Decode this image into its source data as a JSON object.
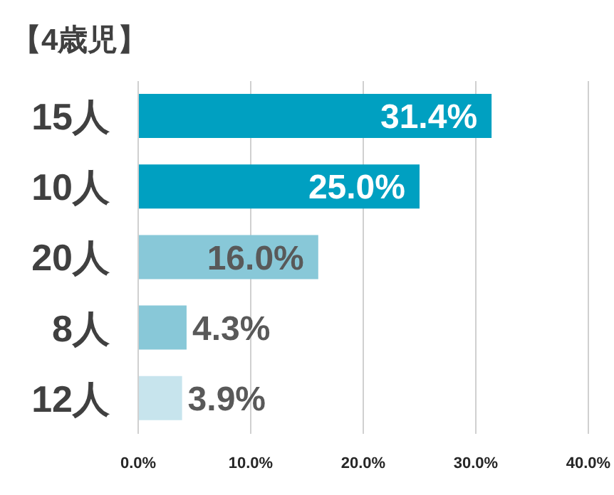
{
  "chart_data": {
    "type": "bar",
    "orientation": "horizontal",
    "title": "【4歳児】",
    "categories": [
      "15人",
      "10人",
      "20人",
      "8人",
      "12人"
    ],
    "values": [
      31.4,
      25.0,
      16.0,
      4.3,
      3.9
    ],
    "colors": [
      "#00a0c1",
      "#00a0c1",
      "#88c8d8",
      "#88c8d8",
      "#c7e4ed"
    ],
    "value_labels": [
      "31.4%",
      "25.0%",
      "16.0%",
      "4.3%",
      "3.9%"
    ],
    "xlim": [
      0,
      40
    ],
    "xticks": [
      {
        "value": 0,
        "label": "0.0%"
      },
      {
        "value": 10,
        "label": "10.0%"
      },
      {
        "value": 20,
        "label": "20.0%"
      },
      {
        "value": 30,
        "label": "30.0%"
      },
      {
        "value": 40,
        "label": "40.0%"
      }
    ],
    "grid": "x",
    "legend": false
  }
}
